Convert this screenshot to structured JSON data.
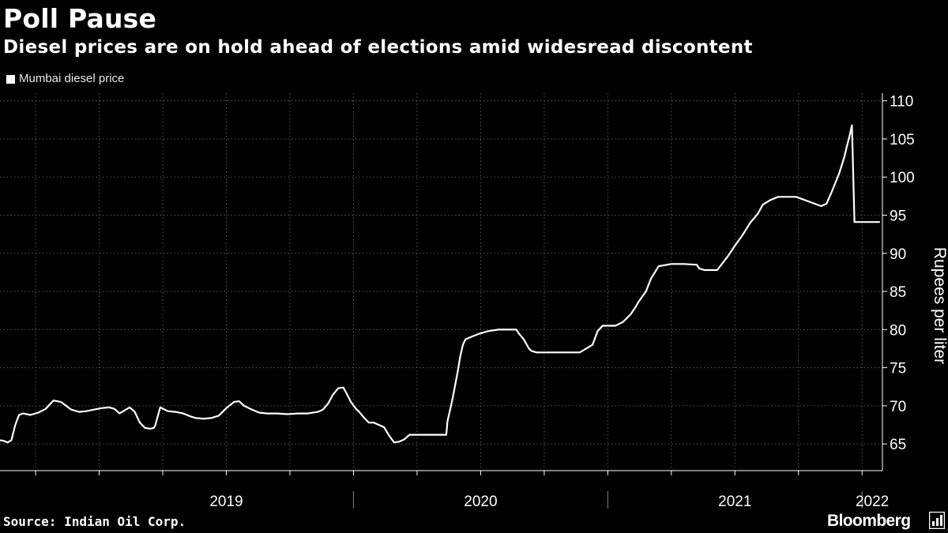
{
  "header": {
    "title": "Poll Pause",
    "subtitle": "Diesel prices are on hold ahead of elections amid widesread discontent"
  },
  "footer": {
    "source": "Source: Indian Oil Corp.",
    "brand": "Bloomberg"
  },
  "colors": {
    "background": "#000000",
    "line": "#ffffff",
    "grid": "#5a5a5a"
  },
  "chart_data": {
    "type": "line",
    "title": "Poll Pause",
    "subtitle": "Diesel prices are on hold ahead of elections amid widesread discontent",
    "ylabel": "Rupees per liter",
    "xlabel": "",
    "ylim": [
      61.5,
      111
    ],
    "y_ticks": [
      65,
      70,
      75,
      80,
      85,
      90,
      95,
      100,
      105,
      110
    ],
    "xlim": [
      2018.61,
      2022.08
    ],
    "x_year_labels": [
      {
        "label": "2019",
        "pos": 2019.5
      },
      {
        "label": "2020",
        "pos": 2020.5
      },
      {
        "label": "2021",
        "pos": 2021.5
      },
      {
        "label": "2022",
        "pos": 2022.04
      }
    ],
    "year_boundaries": [
      2020.0,
      2021.0,
      2022.0
    ],
    "legend": [
      "Mumbai diesel price"
    ],
    "legend_position": "top-left",
    "series": [
      {
        "name": "Mumbai diesel price",
        "x": [
          2018.61,
          2018.625,
          2018.64,
          2018.655,
          2018.67,
          2018.685,
          2018.7,
          2018.73,
          2018.76,
          2018.79,
          2018.82,
          2018.85,
          2018.87,
          2018.89,
          2018.92,
          2018.95,
          2018.98,
          2019.01,
          2019.04,
          2019.06,
          2019.08,
          2019.1,
          2019.12,
          2019.14,
          2019.16,
          2019.18,
          2019.2,
          2019.215,
          2019.22,
          2019.24,
          2019.27,
          2019.3,
          2019.33,
          2019.36,
          2019.38,
          2019.41,
          2019.44,
          2019.47,
          2019.5,
          2019.53,
          2019.55,
          2019.57,
          2019.6,
          2019.63,
          2019.66,
          2019.7,
          2019.74,
          2019.78,
          2019.82,
          2019.86,
          2019.88,
          2019.9,
          2019.92,
          2019.94,
          2019.96,
          2019.97,
          2019.99,
          2020.01,
          2020.02,
          2020.04,
          2020.06,
          2020.08,
          2020.1,
          2020.12,
          2020.14,
          2020.16,
          2020.18,
          2020.2,
          2020.22,
          2020.3,
          2020.365,
          2020.37,
          2020.38,
          2020.39,
          2020.41,
          2020.42,
          2020.43,
          2020.44,
          2020.46,
          2020.49,
          2020.53,
          2020.57,
          2020.6,
          2020.64,
          2020.65,
          2020.67,
          2020.69,
          2020.7,
          2020.72,
          2020.74,
          2020.76,
          2020.78,
          2020.82,
          2020.85,
          2020.89,
          2020.94,
          2020.96,
          2020.98,
          2021.0,
          2021.03,
          2021.06,
          2021.09,
          2021.11,
          2021.12,
          2021.15,
          2021.17,
          2021.2,
          2021.25,
          2021.3,
          2021.35,
          2021.36,
          2021.38,
          2021.4,
          2021.43,
          2021.47,
          2021.5,
          2021.53,
          2021.56,
          2021.59,
          2021.61,
          2021.64,
          2021.67,
          2021.7,
          2021.74,
          2021.79,
          2021.83,
          2021.84,
          2021.86,
          2021.88,
          2021.91,
          2021.93,
          2021.94,
          2021.95,
          2021.96,
          2021.97,
          2021.98,
          2021.99,
          2022.0,
          2022.02,
          2022.04,
          2022.06,
          2022.07
        ],
        "values": [
          65.5,
          65.4,
          65.2,
          65.5,
          67.5,
          68.8,
          69.0,
          68.8,
          69.1,
          69.6,
          70.7,
          70.5,
          70.0,
          69.5,
          69.2,
          69.3,
          69.5,
          69.7,
          69.8,
          69.6,
          69.0,
          69.4,
          69.8,
          69.2,
          67.8,
          67.1,
          67.0,
          67.1,
          67.4,
          69.8,
          69.3,
          69.2,
          69.0,
          68.6,
          68.4,
          68.3,
          68.4,
          68.7,
          69.7,
          70.5,
          70.6,
          70.0,
          69.5,
          69.1,
          69.0,
          69.0,
          68.9,
          69.0,
          69.0,
          69.2,
          69.5,
          70.3,
          71.5,
          72.3,
          72.4,
          71.8,
          70.5,
          69.6,
          69.3,
          68.5,
          67.8,
          67.8,
          67.5,
          67.2,
          66.1,
          65.2,
          65.3,
          65.6,
          66.2,
          66.2,
          66.2,
          68.0,
          69.5,
          71.0,
          74.5,
          76.5,
          78.0,
          78.7,
          79.0,
          79.4,
          79.8,
          80.0,
          80.0,
          80.0,
          79.5,
          78.7,
          77.5,
          77.2,
          77.0,
          77.0,
          77.0,
          77.0,
          77.0,
          77.0,
          77.0,
          78.0,
          79.8,
          80.5,
          80.5,
          80.5,
          81.0,
          82.0,
          83.0,
          83.6,
          85.0,
          86.7,
          88.3,
          88.6,
          88.6,
          88.5,
          88.0,
          87.8,
          87.8,
          87.8,
          89.5,
          91.0,
          92.4,
          94.0,
          95.2,
          96.4,
          97.0,
          97.4,
          97.4,
          97.4,
          96.8,
          96.3,
          96.2,
          96.5,
          98.0,
          100.5,
          102.6,
          104.0,
          105.3,
          106.8,
          94.1,
          94.1,
          94.1,
          94.1,
          94.1,
          94.1,
          94.1,
          94.1
        ]
      }
    ]
  }
}
